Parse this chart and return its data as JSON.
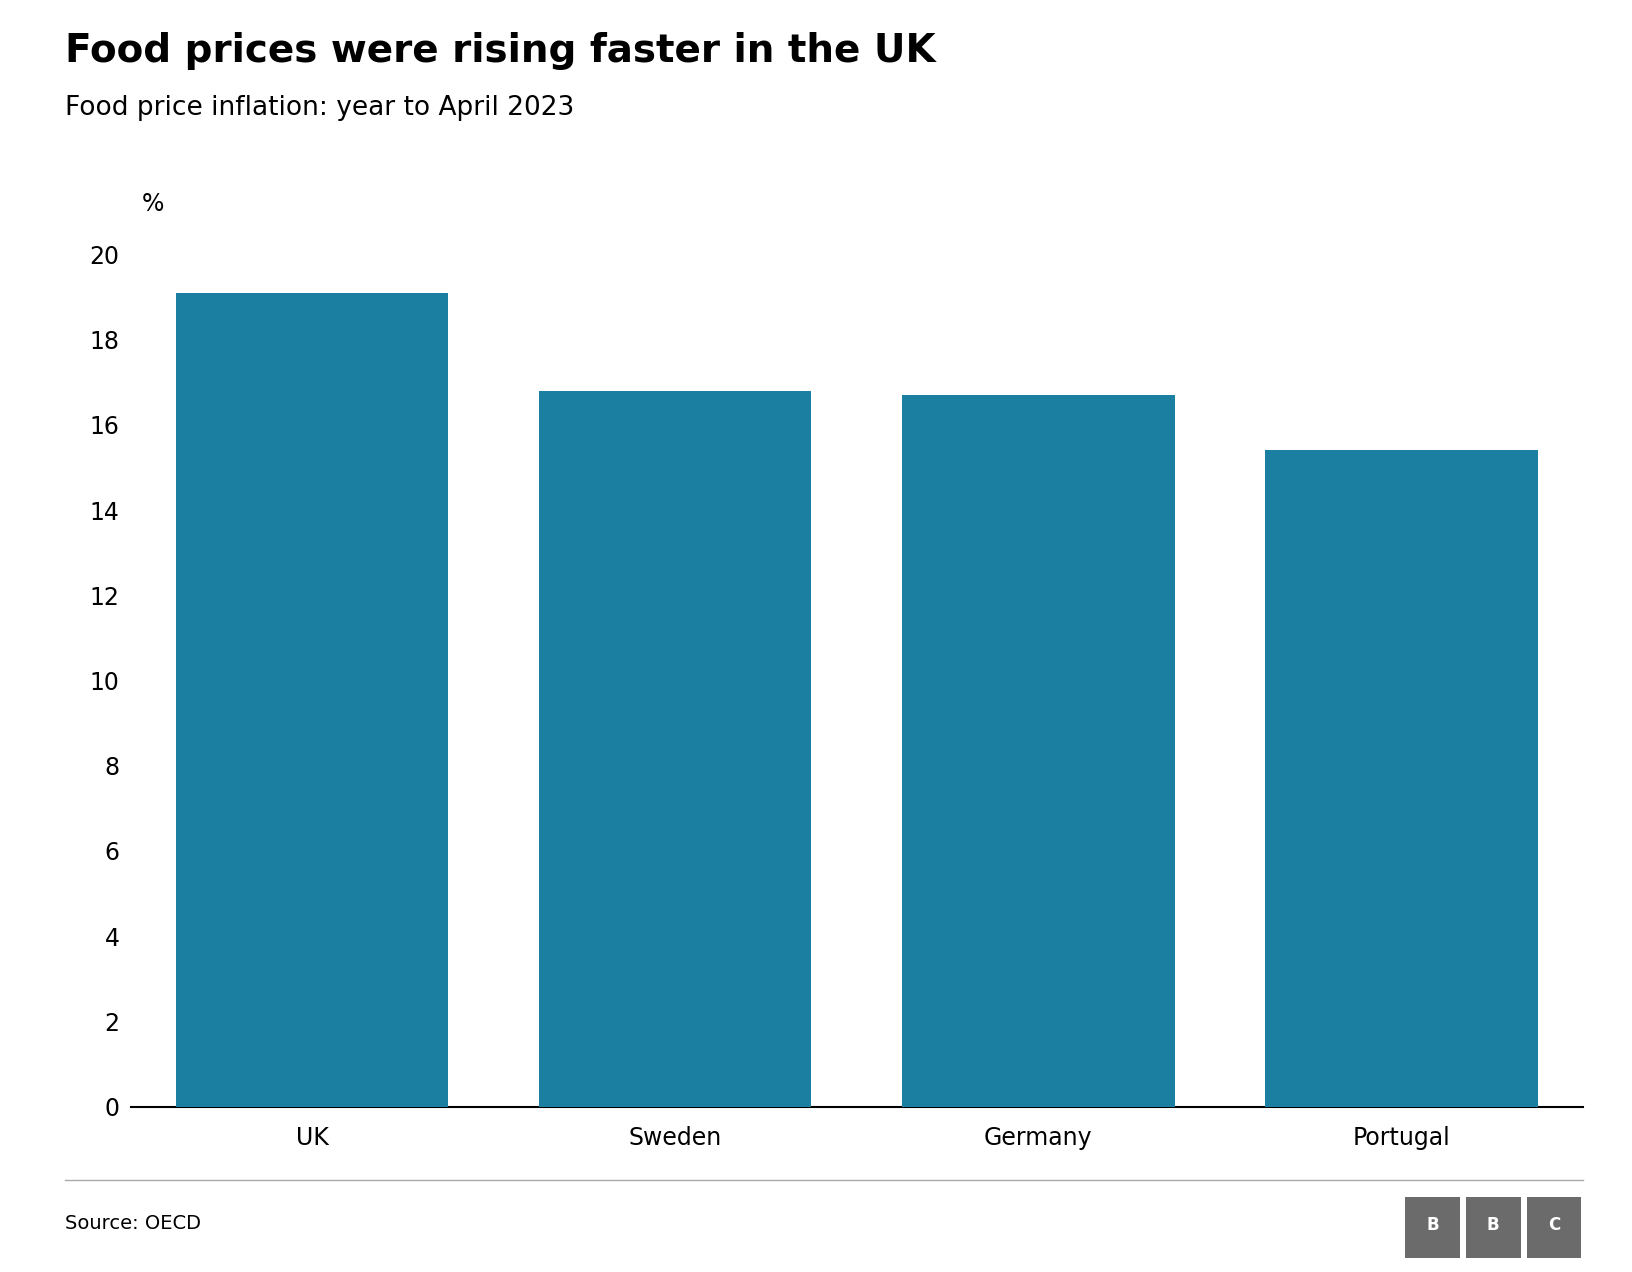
{
  "title": "Food prices were rising faster in the UK",
  "subtitle": "Food price inflation: year to April 2023",
  "categories": [
    "UK",
    "Sweden",
    "Germany",
    "Portugal"
  ],
  "values": [
    19.1,
    16.8,
    16.7,
    15.4
  ],
  "bar_color": "#1a7fa0",
  "ylabel": "%",
  "ylim": [
    0,
    20
  ],
  "yticks": [
    0,
    2,
    4,
    6,
    8,
    10,
    12,
    14,
    16,
    18,
    20
  ],
  "source_text": "Source: OECD",
  "background_color": "#ffffff",
  "title_fontsize": 28,
  "subtitle_fontsize": 19,
  "tick_fontsize": 17,
  "source_fontsize": 14,
  "bbc_box_color": "#6b6b6b",
  "bar_width": 0.75
}
